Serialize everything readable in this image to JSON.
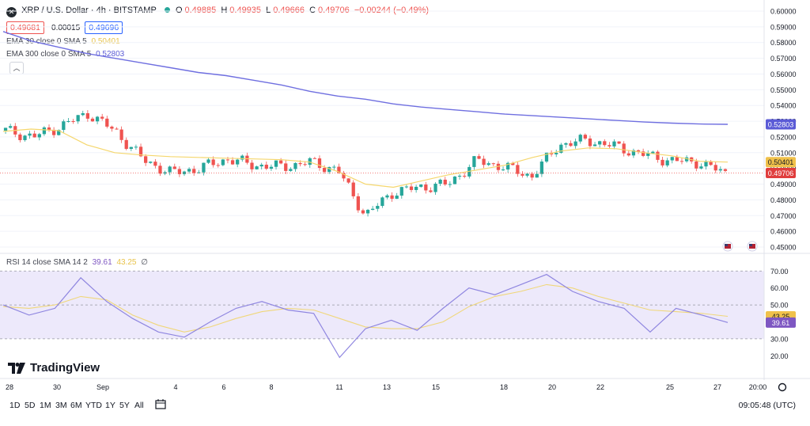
{
  "header": {
    "symbol_icon": "xrp-icon",
    "title": "XRP / U.S. Dollar · 4h · BITSTAMP",
    "open_label": "O",
    "open": "0.49885",
    "high_label": "H",
    "high": "0.49935",
    "low_label": "L",
    "low": "0.49666",
    "close_label": "C",
    "close": "0.49706",
    "change": "−0.00244 (−0.49%)",
    "bid": "0.49681",
    "spread": "0.00015",
    "ask": "0.49696"
  },
  "indicators": {
    "ema30_label": "EMA 30 close 0 SMA 5",
    "ema30_value": "0.50401",
    "ema300_label": "EMA 300 close 0 SMA 5",
    "ema300_value": "0.52803",
    "rsi_label": "RSI 14 close SMA 14 2",
    "rsi_value": "39.61",
    "rsi_sma_value": "43.25",
    "rsi_extra": "∅"
  },
  "price_axis": {
    "ticks": [
      "0.60000",
      "0.59000",
      "0.58000",
      "0.57000",
      "0.56000",
      "0.55000",
      "0.54000",
      "0.53000",
      "0.52000",
      "0.51000",
      "0.50000",
      "0.49000",
      "0.48000",
      "0.47000",
      "0.46000",
      "0.45000"
    ],
    "badges": [
      {
        "label": "0.52803",
        "color": "#5b5bd6"
      },
      {
        "label": "0.50401",
        "color": "#f0c14b"
      },
      {
        "label": "0.49706",
        "color": "#e03d3d"
      }
    ]
  },
  "rsi_axis": {
    "ticks": [
      "70.00",
      "60.00",
      "50.00",
      "40.00",
      "30.00",
      "20.00"
    ],
    "badges": [
      {
        "label": "43.25",
        "color": "#f0c14b"
      },
      {
        "label": "39.61",
        "color": "#7e57c2"
      }
    ]
  },
  "time_axis": {
    "labels": [
      "28",
      "30",
      "Sep",
      "4",
      "6",
      "8",
      "11",
      "13",
      "15",
      "18",
      "20",
      "22",
      "25",
      "27",
      "20:00"
    ]
  },
  "logo_text": "TradingView",
  "toolbar": {
    "timeframes": [
      "1D",
      "5D",
      "1M",
      "3M",
      "6M",
      "YTD",
      "1Y",
      "5Y",
      "All"
    ],
    "clock": "09:05:48 (UTC)"
  },
  "colors": {
    "up": "#26a69a",
    "down": "#ef5350",
    "ema30": "#f5d76e",
    "ema300": "#6f6fe0",
    "rsi": "#8f86e0",
    "rsi_sma": "#f0d77a",
    "rsi_band": "#ede9fb"
  },
  "chart_data": [
    {
      "type": "line",
      "title": "XRP / U.S. Dollar · 4h · BITSTAMP",
      "x_labels": [
        "28",
        "30",
        "Sep",
        "4",
        "6",
        "8",
        "11",
        "13",
        "15",
        "18",
        "20",
        "22",
        "25",
        "27"
      ],
      "ylim": [
        0.45,
        0.6
      ],
      "series": [
        {
          "name": "EMA 30 close 0 SMA 5",
          "values": [
            0.5235,
            0.525,
            0.524,
            0.515,
            0.51,
            0.5085,
            0.5075,
            0.507,
            0.5065,
            0.506,
            0.5055,
            0.504,
            0.498,
            0.49,
            0.488,
            0.492,
            0.496,
            0.499,
            0.502,
            0.507,
            0.511,
            0.513,
            0.5125,
            0.51,
            0.508,
            0.5045,
            0.504
          ]
        },
        {
          "name": "EMA 300 close 0 SMA 5",
          "values": [
            0.587,
            0.581,
            0.577,
            0.573,
            0.57,
            0.567,
            0.564,
            0.561,
            0.559,
            0.556,
            0.553,
            0.549,
            0.546,
            0.544,
            0.541,
            0.539,
            0.5375,
            0.536,
            0.5345,
            0.5335,
            0.5325,
            0.5315,
            0.5305,
            0.5295,
            0.5288,
            0.5282,
            0.528
          ]
        },
        {
          "name": "close",
          "values": [
            0.524,
            0.52,
            0.527,
            0.535,
            0.523,
            0.505,
            0.497,
            0.5,
            0.506,
            0.502,
            0.501,
            0.504,
            0.499,
            0.47,
            0.485,
            0.488,
            0.49,
            0.505,
            0.501,
            0.495,
            0.515,
            0.518,
            0.514,
            0.509,
            0.505,
            0.504,
            0.49706
          ]
        }
      ]
    },
    {
      "type": "line",
      "title": "RSI 14 close SMA 14 2",
      "ylim": [
        15,
        72
      ],
      "series": [
        {
          "name": "RSI",
          "values": [
            50,
            44,
            48,
            66,
            52,
            42,
            34,
            31,
            40,
            48,
            52,
            47,
            45,
            19,
            36,
            41,
            35,
            48,
            60,
            56,
            62,
            68,
            58,
            52,
            48,
            34,
            48,
            44,
            39.61
          ]
        },
        {
          "name": "SMA",
          "values": [
            49,
            48,
            50,
            55,
            53,
            44,
            38,
            34,
            37,
            42,
            46,
            48,
            47,
            42,
            37,
            36,
            36,
            40,
            49,
            55,
            58,
            62,
            60,
            55,
            51,
            47,
            46,
            45,
            43.25
          ]
        }
      ]
    }
  ]
}
